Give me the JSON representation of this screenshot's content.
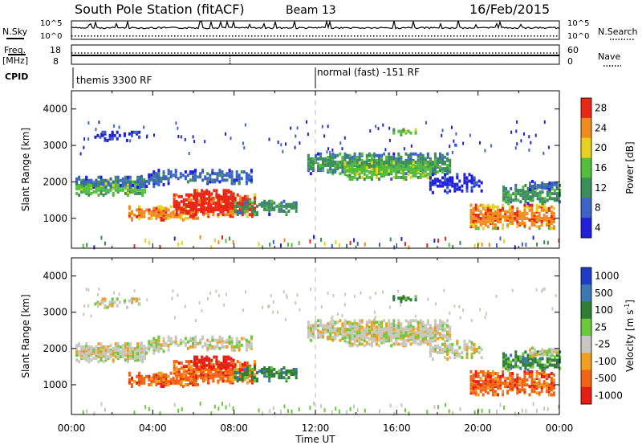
{
  "header": {
    "station": "South Pole Station (fitACF)",
    "beam": "Beam 13",
    "date": "16/Feb/2015"
  },
  "left_labels": {
    "nsky": "N.Sky",
    "freq": "Freq.",
    "freq_unit": "[MHz]",
    "cpid": "CPID"
  },
  "right_labels": {
    "nsearch": "N.Search",
    "nave": "Nave"
  },
  "cpid_segments": [
    {
      "label": "themis 3300 RF",
      "start": "00:00"
    },
    {
      "label": "normal (fast) -151 RF",
      "start": "12:00"
    }
  ],
  "chart_data": [
    {
      "type": "line",
      "panel": "noise",
      "y_left_ticks": [
        "10^5",
        "10^0"
      ],
      "y_right_ticks": [
        "10^5",
        "10^0"
      ],
      "series": [
        {
          "name": "N.Sky",
          "style": "solid",
          "level": 0.62
        },
        {
          "name": "N.Search",
          "style": "dotted",
          "level": 0.18
        }
      ]
    },
    {
      "type": "line",
      "panel": "frequency",
      "y_left_ticks": [
        "18",
        "8"
      ],
      "y_right_ticks": [
        "60",
        "0"
      ],
      "series": [
        {
          "name": "Freq.",
          "style": "solid",
          "value_mhz": 12
        },
        {
          "name": "Nave",
          "style": "dotted",
          "value": 40
        }
      ]
    },
    {
      "type": "heatmap",
      "panel": "power",
      "ylabel": "Slant Range [km]",
      "ylim": [
        180,
        4500
      ],
      "y_ticks": [
        "1000",
        "2000",
        "3000",
        "4000"
      ],
      "colorbar": {
        "label": "Power [dB]",
        "ticks": [
          "4",
          "8",
          "12",
          "16",
          "20",
          "24",
          "28"
        ],
        "colors": [
          "#2020d8",
          "#3c64c4",
          "#3c8c5c",
          "#52be3c",
          "#e6d21e",
          "#f08c1e",
          "#e62814"
        ]
      }
    },
    {
      "type": "heatmap",
      "panel": "velocity",
      "ylabel": "Slant Range [km]",
      "xlabel": "Time UT",
      "ylim": [
        180,
        4500
      ],
      "y_ticks": [
        "1000",
        "2000",
        "3000",
        "4000"
      ],
      "x_ticks": [
        "00:00",
        "04:00",
        "08:00",
        "12:00",
        "16:00",
        "20:00",
        "00:00"
      ],
      "colorbar": {
        "label": "Velocity [m s",
        "label_sup": "-1",
        "label_end": "]",
        "ticks": [
          "1000",
          "500",
          "100",
          "25",
          "-25",
          "-100",
          "-500",
          "-1000"
        ],
        "colors": [
          "#1e3cc8",
          "#3c78b4",
          "#2e7d32",
          "#6cc83c",
          "#c8c8c0",
          "#f0a01e",
          "#f06414",
          "#e61e14"
        ]
      }
    }
  ]
}
